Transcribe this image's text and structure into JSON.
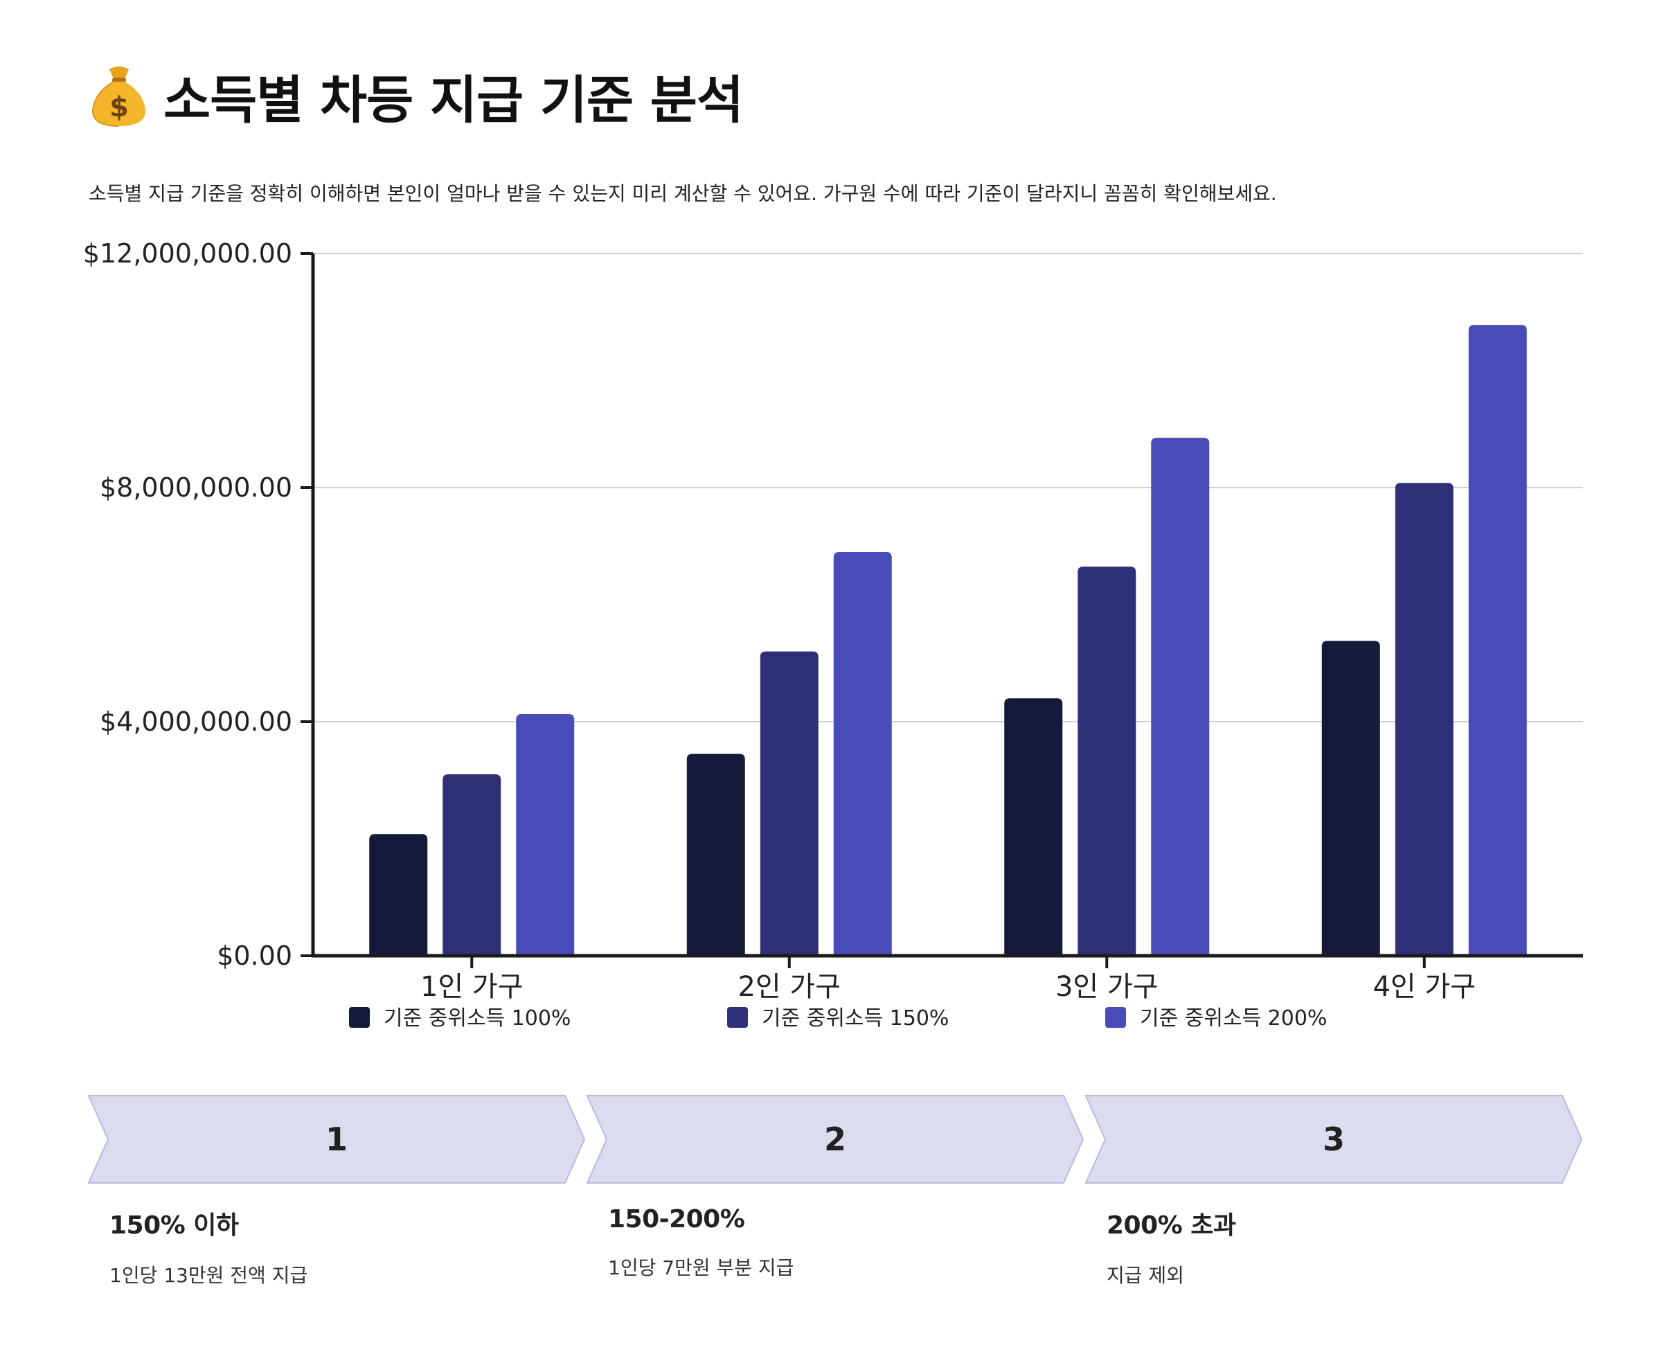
{
  "header": {
    "title": "소득별 차등 지급 기준 분석",
    "icon": "money-bag-icon",
    "description": "소득별 지급 기준을 정확히 이해하면 본인이 얼마나 받을 수 있는지 미리 계산할 수 있어요. 가구원 수에 따라 기준이 달라지니 꼼꼼히 확인해보세요."
  },
  "colors": {
    "series": [
      "#161a3a",
      "#2e3178",
      "#474cb8"
    ],
    "step_fill": "#dcdcf0",
    "step_stroke": "#b9b9dd",
    "grid": "#cfcfd6",
    "axis": "#1a1a1a"
  },
  "chart_data": {
    "type": "bar",
    "title": "",
    "xlabel": "",
    "ylabel": "",
    "categories": [
      "1인 가구",
      "2인 가구",
      "3인 가구",
      "4인 가구"
    ],
    "series": [
      {
        "name": "기준 중위소득 100%",
        "values": [
          2080000,
          3450000,
          4400000,
          5380000
        ]
      },
      {
        "name": "기준 중위소득 150%",
        "values": [
          3100000,
          5200000,
          6650000,
          8080000
        ]
      },
      {
        "name": "기준 중위소득 200%",
        "values": [
          4130000,
          6900000,
          8850000,
          10780000
        ]
      }
    ],
    "ylim": [
      0,
      12000000
    ],
    "yticks": [
      0,
      4000000,
      8000000,
      12000000
    ],
    "ytick_labels": [
      "$0.00",
      "$4,000,000.00",
      "$8,000,000.00",
      "$12,000,000.00"
    ],
    "grid": true,
    "legend_position": "bottom"
  },
  "steps": [
    {
      "number": "1",
      "heading": "150% 이하",
      "text": "1인당 13만원 전액 지급"
    },
    {
      "number": "2",
      "heading": "150-200%",
      "text": "1인당 7만원 부분 지급"
    },
    {
      "number": "3",
      "heading": "200% 초과",
      "text": "지급 제외"
    }
  ]
}
